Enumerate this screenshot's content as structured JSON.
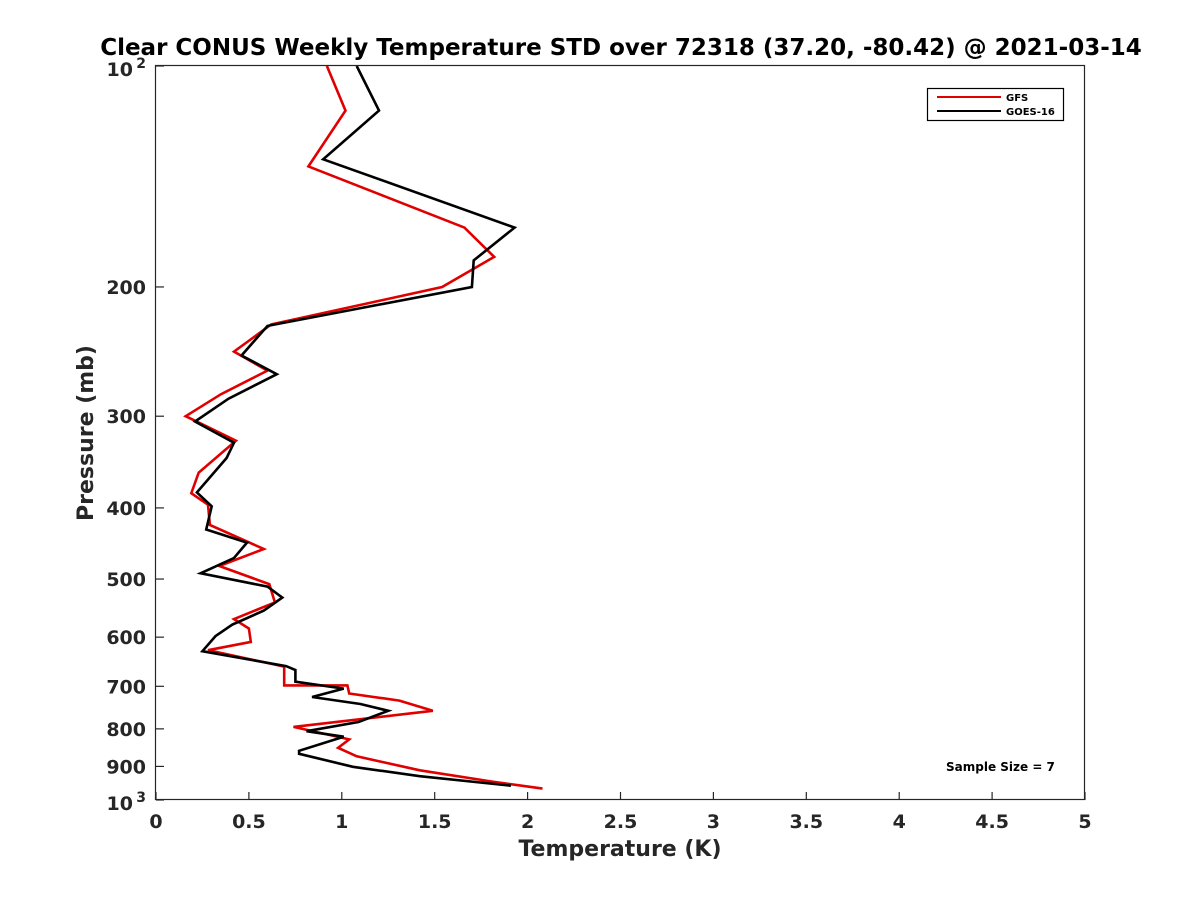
{
  "chart_data": {
    "type": "line",
    "title": "Clear CONUS Weekly Temperature STD over 72318 (37.20, -80.42) @ 2021-03-14",
    "xlabel": "Temperature (K)",
    "ylabel": "Pressure (mb)",
    "xlim": [
      0,
      5
    ],
    "ylim": [
      100,
      1000
    ],
    "y_scale": "log",
    "y_reversed": true,
    "x_ticks": [
      "0",
      "0.5",
      "1",
      "1.5",
      "2",
      "2.5",
      "3",
      "3.5",
      "4",
      "4.5",
      "5"
    ],
    "y_ticks": [
      {
        "value": 100,
        "base": "10",
        "exp": "2"
      },
      {
        "value": 200,
        "label": "200"
      },
      {
        "value": 300,
        "label": "300"
      },
      {
        "value": 400,
        "label": "400"
      },
      {
        "value": 500,
        "label": "500"
      },
      {
        "value": 600,
        "label": "600"
      },
      {
        "value": 700,
        "label": "700"
      },
      {
        "value": 800,
        "label": "800"
      },
      {
        "value": 900,
        "label": "900"
      },
      {
        "value": 1000,
        "base": "10",
        "exp": "3"
      }
    ],
    "legend_position": "top-right",
    "annotation": "Sample Size = 7",
    "series": [
      {
        "name": "GFS",
        "color": "#e00000",
        "points": [
          [
            0.92,
            100
          ],
          [
            1.02,
            115
          ],
          [
            0.82,
            137
          ],
          [
            1.66,
            166
          ],
          [
            1.82,
            182
          ],
          [
            1.54,
            200
          ],
          [
            0.62,
            225
          ],
          [
            0.42,
            245
          ],
          [
            0.6,
            260
          ],
          [
            0.35,
            280
          ],
          [
            0.16,
            300
          ],
          [
            0.43,
            324
          ],
          [
            0.23,
            358
          ],
          [
            0.19,
            382
          ],
          [
            0.28,
            396
          ],
          [
            0.29,
            422
          ],
          [
            0.58,
            455
          ],
          [
            0.34,
            480
          ],
          [
            0.61,
            508
          ],
          [
            0.64,
            538
          ],
          [
            0.42,
            567
          ],
          [
            0.5,
            584
          ],
          [
            0.51,
            609
          ],
          [
            0.28,
            625
          ],
          [
            0.69,
            658
          ],
          [
            0.69,
            698
          ],
          [
            1.03,
            698
          ],
          [
            1.04,
            716
          ],
          [
            1.31,
            732
          ],
          [
            1.49,
            756
          ],
          [
            0.74,
            795
          ],
          [
            1.04,
            827
          ],
          [
            0.98,
            849
          ],
          [
            1.08,
            872
          ],
          [
            1.42,
            911
          ],
          [
            1.81,
            944
          ],
          [
            2.08,
            965
          ]
        ]
      },
      {
        "name": "GOES-16",
        "color": "#000000",
        "points": [
          [
            1.08,
            100
          ],
          [
            1.2,
            115
          ],
          [
            0.9,
            134
          ],
          [
            1.93,
            166
          ],
          [
            1.71,
            184
          ],
          [
            1.7,
            200
          ],
          [
            0.6,
            226
          ],
          [
            0.46,
            248
          ],
          [
            0.65,
            263
          ],
          [
            0.39,
            284
          ],
          [
            0.21,
            305
          ],
          [
            0.42,
            326
          ],
          [
            0.38,
            342
          ],
          [
            0.22,
            381
          ],
          [
            0.3,
            398
          ],
          [
            0.27,
            428
          ],
          [
            0.49,
            446
          ],
          [
            0.42,
            468
          ],
          [
            0.24,
            491
          ],
          [
            0.6,
            512
          ],
          [
            0.68,
            530
          ],
          [
            0.58,
            552
          ],
          [
            0.41,
            577
          ],
          [
            0.32,
            598
          ],
          [
            0.25,
            627
          ],
          [
            0.7,
            657
          ],
          [
            0.75,
            665
          ],
          [
            0.75,
            690
          ],
          [
            1.01,
            705
          ],
          [
            0.84,
            724
          ],
          [
            1.1,
            740
          ],
          [
            1.25,
            756
          ],
          [
            1.09,
            783
          ],
          [
            0.81,
            806
          ],
          [
            1.01,
            820
          ],
          [
            0.77,
            857
          ],
          [
            0.77,
            865
          ],
          [
            1.06,
            901
          ],
          [
            1.42,
            928
          ],
          [
            1.91,
            956
          ]
        ]
      }
    ]
  }
}
